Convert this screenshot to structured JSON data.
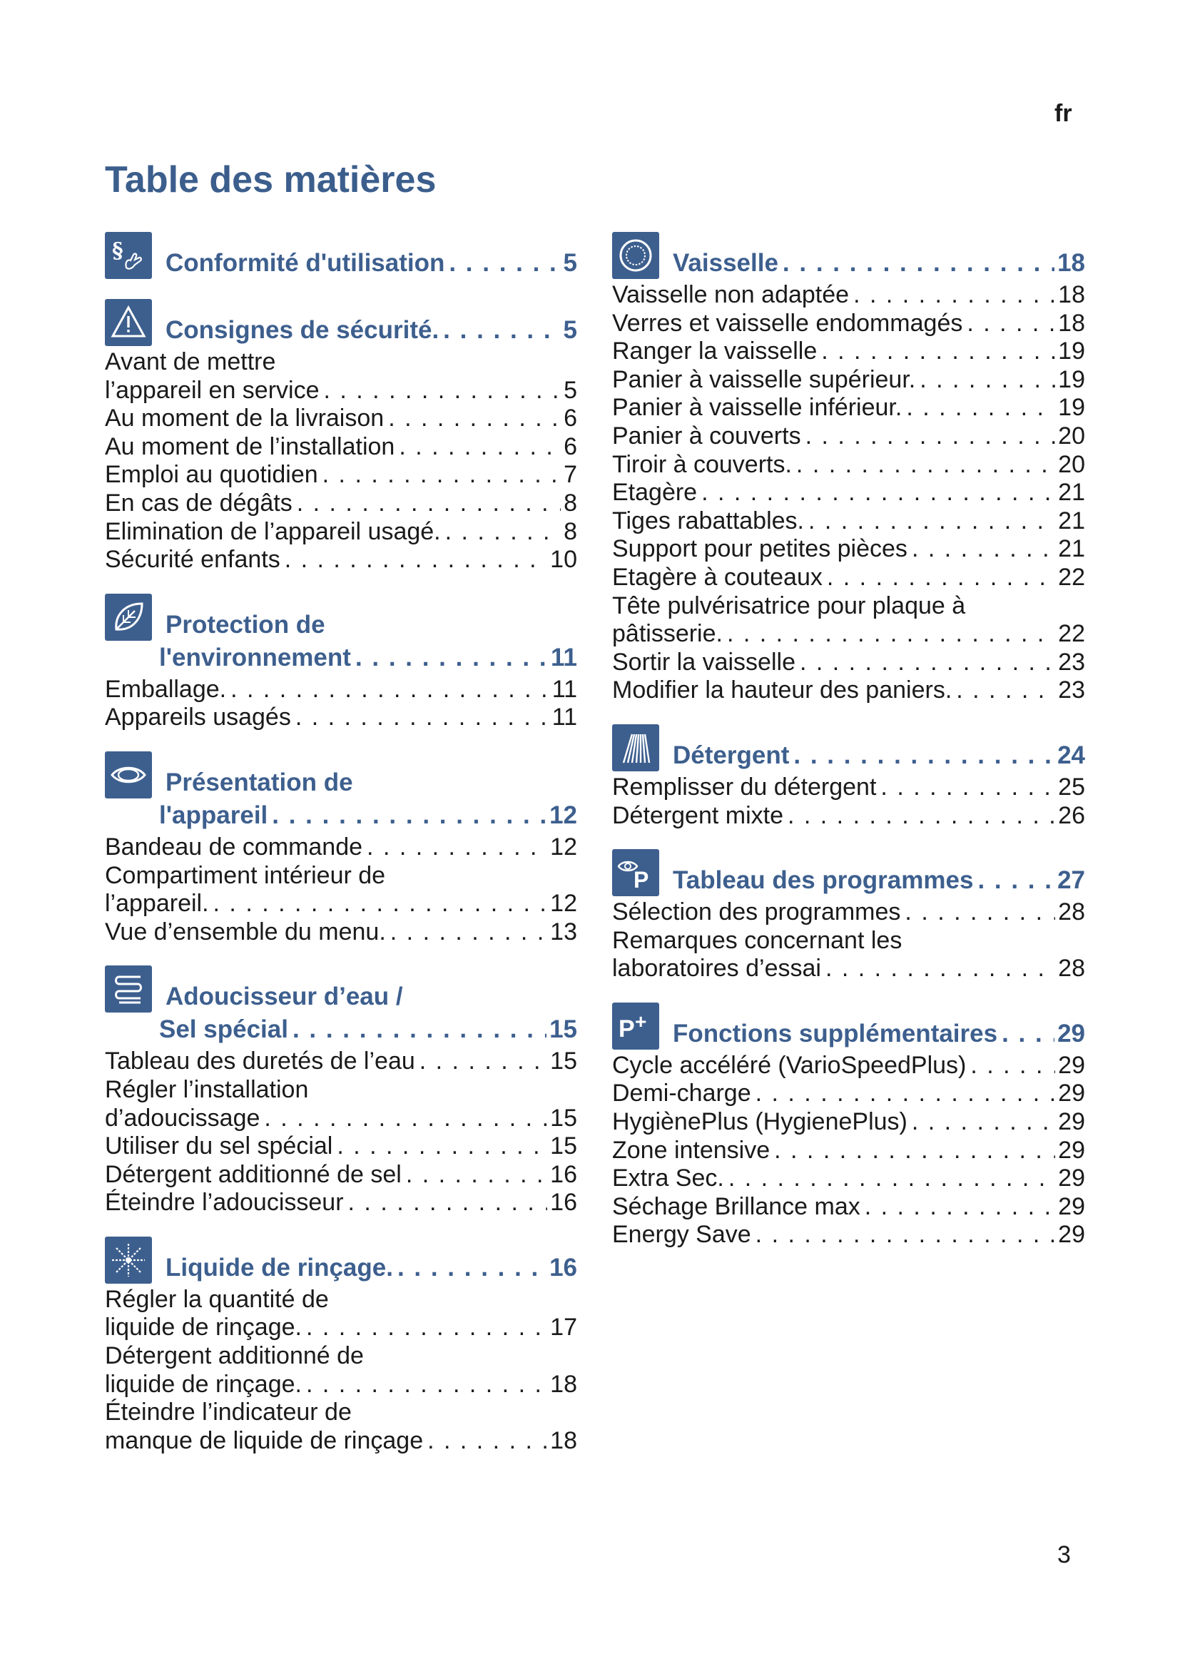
{
  "language": "fr",
  "title": "Table des matières",
  "page_number": "3",
  "left": [
    {
      "icon": "paragraph-hand-icon",
      "head": [
        "Conformité d'utilisation"
      ],
      "page": "5",
      "items": []
    },
    {
      "icon": "warning-triangle-icon",
      "head": [
        "Consignes de sécurité."
      ],
      "page": "5",
      "items": [
        {
          "pre": "Avant de mettre",
          "text": "l’appareil en service",
          "page": "5"
        },
        {
          "text": "Au moment de la livraison",
          "page": "6"
        },
        {
          "text": "Au moment de l’installation",
          "page": "6"
        },
        {
          "text": "Emploi au quotidien",
          "page": "7"
        },
        {
          "text": "En cas de dégâts",
          "page": "8"
        },
        {
          "text": "Elimination de l’appareil usagé.",
          "page": "8"
        },
        {
          "text": "Sécurité enfants",
          "page": "10"
        }
      ]
    },
    {
      "icon": "leaf-icon",
      "head": [
        "Protection de",
        "l'environnement"
      ],
      "page": "11",
      "items": [
        {
          "text": "Emballage.",
          "page": "11"
        },
        {
          "text": "Appareils usagés",
          "page": "11"
        }
      ]
    },
    {
      "icon": "eye-icon",
      "head": [
        "Présentation de",
        "l'appareil"
      ],
      "page": "12",
      "items": [
        {
          "text": "Bandeau de commande",
          "page": "12"
        },
        {
          "pre": "Compartiment intérieur de",
          "text": "l’appareil.",
          "page": "12"
        },
        {
          "text": "Vue d’ensemble du menu.",
          "page": "13"
        }
      ]
    },
    {
      "icon": "water-softener-icon",
      "head": [
        "Adoucisseur d’eau /",
        "Sel spécial"
      ],
      "page": "15",
      "items": [
        {
          "text": "Tableau des duretés de l’eau",
          "page": "15"
        },
        {
          "pre": "Régler l’installation",
          "text": "d’adoucissage",
          "page": "15"
        },
        {
          "text": "Utiliser du sel spécial",
          "page": "15"
        },
        {
          "text": "Détergent additionné de sel",
          "page": "16"
        },
        {
          "text": "Éteindre l’adoucisseur",
          "page": "16"
        }
      ]
    },
    {
      "icon": "rinse-aid-sparkle-icon",
      "head": [
        "Liquide de rinçage."
      ],
      "page": "16",
      "items": [
        {
          "pre": "Régler la quantité de",
          "text": "liquide de rinçage.",
          "page": "17"
        },
        {
          "pre": "Détergent additionné de",
          "text": "liquide de rinçage.",
          "page": "18"
        },
        {
          "pre": "Éteindre l’indicateur de",
          "text": "manque de liquide de rinçage",
          "page": "18"
        }
      ]
    }
  ],
  "right": [
    {
      "icon": "plate-icon",
      "head": [
        "Vaisselle"
      ],
      "page": "18",
      "items": [
        {
          "text": "Vaisselle non adaptée",
          "page": "18"
        },
        {
          "text": "Verres et vaisselle endommagés",
          "page": "18"
        },
        {
          "text": "Ranger la vaisselle",
          "page": "19"
        },
        {
          "text": "Panier à vaisselle supérieur.",
          "page": "19"
        },
        {
          "text": "Panier à vaisselle inférieur.",
          "page": "19"
        },
        {
          "text": "Panier à couverts",
          "page": "20"
        },
        {
          "text": "Tiroir à couverts.",
          "page": "20"
        },
        {
          "text": "Etagère",
          "page": "21"
        },
        {
          "text": "Tiges rabattables.",
          "page": "21"
        },
        {
          "text": "Support pour petites pièces",
          "page": "21"
        },
        {
          "text": "Etagère à couteaux",
          "page": "22"
        },
        {
          "pre": "Tête pulvérisatrice pour plaque à",
          "text": "pâtisserie.",
          "page": "22"
        },
        {
          "text": "Sortir la vaisselle",
          "page": "23"
        },
        {
          "text": "Modifier la hauteur des paniers.",
          "page": "23"
        }
      ]
    },
    {
      "icon": "detergent-icon",
      "head": [
        "Détergent"
      ],
      "page": "24",
      "items": [
        {
          "text": "Remplisser du détergent",
          "page": "25"
        },
        {
          "text": "Détergent mixte",
          "page": "26"
        }
      ]
    },
    {
      "icon": "program-table-icon",
      "head": [
        "Tableau des programmes"
      ],
      "page": "27",
      "items": [
        {
          "text": "Sélection des programmes",
          "page": "28"
        },
        {
          "pre": "Remarques concernant les",
          "text": "laboratoires d’essai",
          "page": "28"
        }
      ]
    },
    {
      "icon": "program-plus-icon",
      "head": [
        "Fonctions supplémentaires"
      ],
      "page": "29",
      "items": [
        {
          "text": "Cycle accéléré (VarioSpeedPlus)",
          "page": "29"
        },
        {
          "text": "Demi-charge",
          "page": "29"
        },
        {
          "text": "HygiènePlus (HygienePlus)",
          "page": "29"
        },
        {
          "text": "Zone intensive",
          "page": "29"
        },
        {
          "text": "Extra Sec.",
          "page": "29"
        },
        {
          "text": "Séchage Brillance max",
          "page": "29"
        },
        {
          "text": "Energy Save",
          "page": "29"
        }
      ]
    }
  ]
}
